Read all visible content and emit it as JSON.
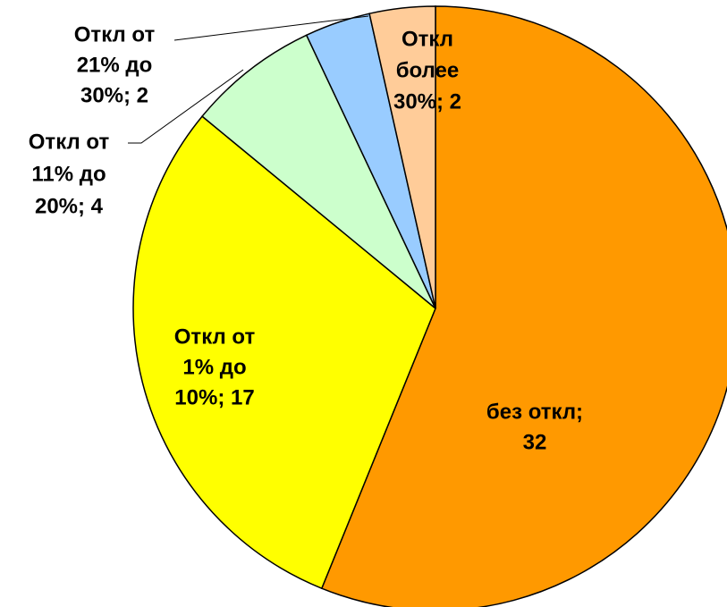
{
  "chart_data": {
    "type": "pie",
    "categories": [
      "без откл",
      "Откл от 1% до 10%",
      "Откл от 11% до 20%",
      "Откл от 21% до 30%",
      "Откл более 30%"
    ],
    "values": [
      32,
      17,
      4,
      2,
      2
    ],
    "value_labels": [
      [
        "без откл;",
        "32"
      ],
      [
        "Откл от",
        "1% до",
        "10%; 17"
      ],
      [
        "Откл от",
        "11% до",
        "20%; 4"
      ],
      [
        "Откл от",
        "21% до",
        "30%; 2"
      ],
      [
        "Откл",
        "более",
        "30%; 2"
      ]
    ],
    "colors": [
      "#FF9900",
      "#FFFF00",
      "#CCFFCC",
      "#99CCFF",
      "#FFCC99"
    ]
  }
}
